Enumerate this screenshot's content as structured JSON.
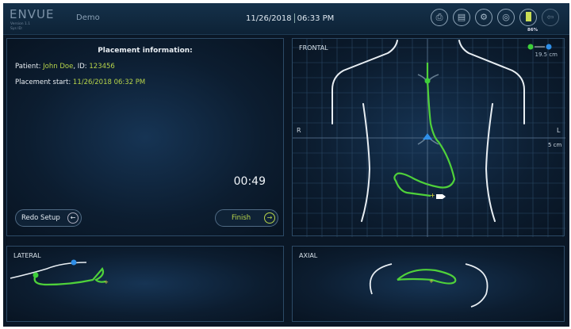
{
  "header": {
    "logo": "ENVUE",
    "version": "Version 1.1",
    "sys_id": "Sys ID:",
    "mode": "Demo",
    "date": "11/26/2018",
    "time": "06:33 PM",
    "battery": "86%",
    "icons": [
      "export-icon",
      "print-icon",
      "settings-icon",
      "signal-icon",
      "battery-icon",
      "exit-icon"
    ]
  },
  "info": {
    "title": "Placement information:",
    "patient_label": "Patient:",
    "patient_name": "John Doe",
    "id_label": ", ID:",
    "patient_id": "123456",
    "start_label": "Placement start:",
    "start_value": "11/26/2018  06:32 PM",
    "timer": "00:49",
    "redo": "Redo Setup",
    "finish": "Finish"
  },
  "frontal": {
    "title": "FRONTAL",
    "distance": "19.5 cm",
    "right": "R",
    "left": "L",
    "scale": "5 cm"
  },
  "lateral": {
    "title": "LATERAL"
  },
  "axial": {
    "title": "AXIAL"
  },
  "colors": {
    "tube": "#4fd13a",
    "accent": "#b9d54c",
    "start_marker": "#3ecf3a",
    "ref_marker": "#2f8fe8"
  }
}
